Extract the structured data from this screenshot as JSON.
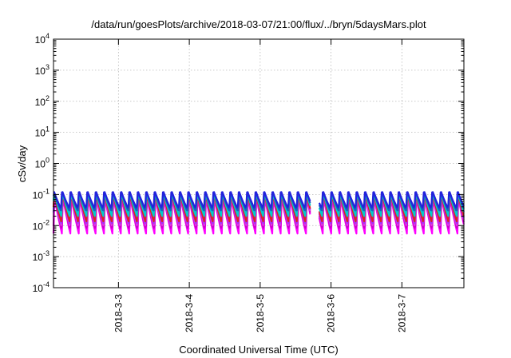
{
  "chart_data": {
    "type": "line",
    "title": "/data/run/goesPlots/archive/2018-03-07/21:00/flux/../bryn/5daysMars.plot",
    "xlabel": "Coordinated Universal Time (UTC)",
    "ylabel": "cSv/day",
    "y_scale": "log",
    "ylim": [
      0.0001,
      10000
    ],
    "y_ticks": [
      {
        "value": 0.0001,
        "base": "10",
        "exp": "-4"
      },
      {
        "value": 0.001,
        "base": "10",
        "exp": "-3"
      },
      {
        "value": 0.01,
        "base": "10",
        "exp": "-2"
      },
      {
        "value": 0.1,
        "base": "10",
        "exp": "-1"
      },
      {
        "value": 1,
        "base": "10",
        "exp": "0"
      },
      {
        "value": 10,
        "base": "10",
        "exp": "1"
      },
      {
        "value": 100,
        "base": "10",
        "exp": "2"
      },
      {
        "value": 1000,
        "base": "10",
        "exp": "3"
      },
      {
        "value": 10000,
        "base": "10",
        "exp": "4"
      }
    ],
    "xlim": [
      "2018-03-02T02:00",
      "2018-03-07T21:00"
    ],
    "x_ticks": [
      {
        "value": "2018-03-03T00:00",
        "label": "2018-3-3"
      },
      {
        "value": "2018-03-04T00:00",
        "label": "2018-3-4"
      },
      {
        "value": "2018-03-05T00:00",
        "label": "2018-3-5"
      },
      {
        "value": "2018-03-06T00:00",
        "label": "2018-3-6"
      },
      {
        "value": "2018-03-07T00:00",
        "label": "2018-3-7"
      }
    ],
    "grid": true,
    "oscillation": {
      "period_hours": 2.85,
      "data_gap": [
        "2018-03-05T17:00",
        "2018-03-05T20:00"
      ]
    },
    "series": [
      {
        "color": "#ff00ff",
        "peak": 0.09,
        "trough": 0.0055
      },
      {
        "color": "#cc00cc",
        "peak": 0.1,
        "trough": 0.007
      },
      {
        "color": "#e040e0",
        "peak": 0.11,
        "trough": 0.009
      },
      {
        "color": "#9933ff",
        "peak": 0.115,
        "trough": 0.011
      },
      {
        "color": "#dd2222",
        "peak": 0.12,
        "trough": 0.013
      },
      {
        "color": "#00cccc",
        "peak": 0.125,
        "trough": 0.02
      },
      {
        "color": "#1565c0",
        "peak": 0.13,
        "trough": 0.028
      },
      {
        "color": "#2222dd",
        "peak": 0.14,
        "trough": 0.035
      }
    ]
  }
}
